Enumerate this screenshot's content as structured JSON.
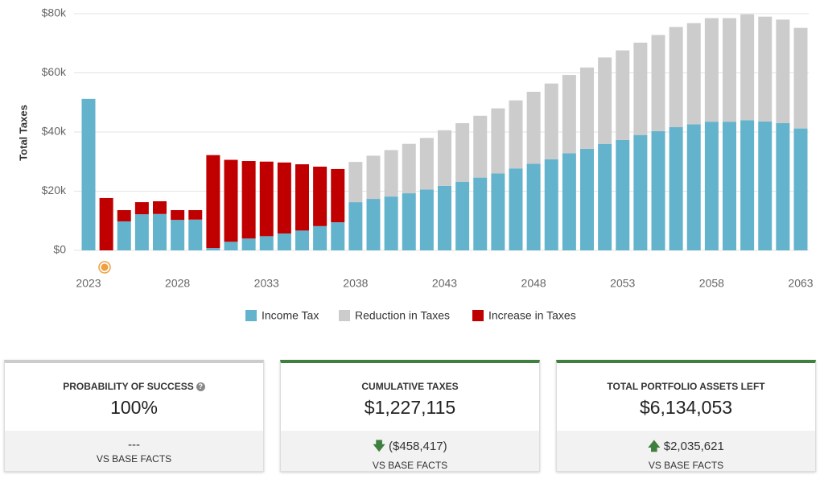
{
  "chart_data": {
    "type": "bar",
    "stacked": true,
    "ylabel": "Total Taxes",
    "x": [
      2023,
      2024,
      2025,
      2026,
      2027,
      2028,
      2029,
      2030,
      2031,
      2032,
      2033,
      2034,
      2035,
      2036,
      2037,
      2038,
      2039,
      2040,
      2041,
      2042,
      2043,
      2044,
      2045,
      2046,
      2047,
      2048,
      2049,
      2050,
      2051,
      2052,
      2053,
      2054,
      2055,
      2056,
      2057,
      2058,
      2059,
      2060,
      2061,
      2062,
      2063
    ],
    "series": [
      {
        "name": "Income Tax",
        "color": "#63b3cd",
        "values": [
          51200,
          0,
          9800,
          12200,
          12300,
          10300,
          10400,
          800,
          2900,
          4000,
          4800,
          5700,
          6700,
          8200,
          9500,
          16300,
          17400,
          18200,
          19300,
          20600,
          21800,
          23200,
          24600,
          26000,
          27700,
          29300,
          30800,
          32800,
          34300,
          36000,
          37300,
          39000,
          40300,
          41700,
          42600,
          43500,
          43500,
          44000,
          43600,
          43000,
          41200
        ]
      },
      {
        "name": "Reduction in Taxes",
        "color": "#cccccc",
        "values": [
          0,
          0,
          0,
          0,
          0,
          0,
          0,
          0,
          0,
          0,
          0,
          0,
          0,
          0,
          0,
          13600,
          14600,
          15700,
          16700,
          17400,
          18800,
          19800,
          20900,
          22000,
          23000,
          24300,
          25600,
          26500,
          27500,
          29200,
          30300,
          31200,
          32500,
          33800,
          34200,
          35000,
          35000,
          35800,
          35400,
          35000,
          34000
        ]
      },
      {
        "name": "Increase in Taxes",
        "color": "#c00000",
        "values": [
          0,
          17700,
          3800,
          4100,
          4300,
          3300,
          3200,
          31400,
          27700,
          26200,
          25200,
          24000,
          22400,
          20100,
          18000,
          0,
          0,
          0,
          0,
          0,
          0,
          0,
          0,
          0,
          0,
          0,
          0,
          0,
          0,
          0,
          0,
          0,
          0,
          0,
          0,
          0,
          0,
          0,
          0,
          0,
          0
        ]
      }
    ],
    "xlim": [
      2023,
      2063
    ],
    "xticks": [
      2023,
      2028,
      2033,
      2038,
      2043,
      2048,
      2053,
      2058,
      2063
    ],
    "ylim": [
      0,
      80000
    ],
    "yticks": [
      {
        "value": 0,
        "label": "$0"
      },
      {
        "value": 20000,
        "label": "$20k"
      },
      {
        "value": 40000,
        "label": "$40k"
      },
      {
        "value": 60000,
        "label": "$60k"
      },
      {
        "value": 80000,
        "label": "$80k"
      }
    ],
    "grid": true,
    "legend": "bottom"
  },
  "cards": [
    {
      "title": "PROBABILITY OF SUCCESS",
      "value": "100%",
      "delta": "---",
      "note": "VS BASE FACTS"
    },
    {
      "title": "CUMULATIVE TAXES",
      "value": "$1,227,115",
      "delta": "($458,417)",
      "note": "VS BASE FACTS"
    },
    {
      "title": "TOTAL PORTFOLIO ASSETS LEFT",
      "value": "$6,134,053",
      "delta": "$2,035,621",
      "note": "VS BASE FACTS"
    }
  ]
}
